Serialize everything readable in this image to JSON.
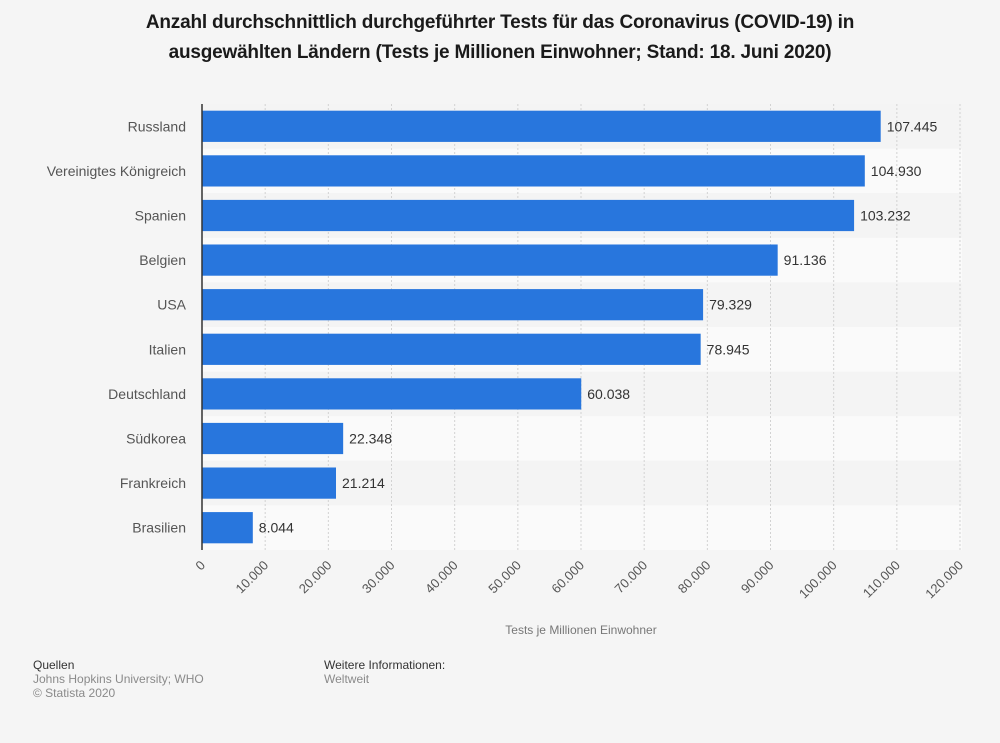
{
  "chart_data": {
    "type": "bar",
    "orientation": "horizontal",
    "title": "Anzahl durchschnittlich durchgeführter Tests für das Coronavirus (COVID-19) in ausgewählten Ländern (Tests je Millionen Einwohner; Stand: 18. Juni 2020)",
    "title_lines": [
      "Anzahl durchschnittlich durchgeführter Tests für das Coronavirus (COVID-19) in",
      "ausgewählten Ländern (Tests je Millionen Einwohner; Stand: 18. Juni 2020)"
    ],
    "categories": [
      "Russland",
      "Vereinigtes Königreich",
      "Spanien",
      "Belgien",
      "USA",
      "Italien",
      "Deutschland",
      "Südkorea",
      "Frankreich",
      "Brasilien"
    ],
    "values": [
      107445,
      104930,
      103232,
      91136,
      79329,
      78945,
      60038,
      22348,
      21214,
      8044
    ],
    "value_labels": [
      "107.445",
      "104.930",
      "103.232",
      "91.136",
      "79.329",
      "78.945",
      "60.038",
      "22.348",
      "21.214",
      "8.044"
    ],
    "xlabel": "Tests je Millionen Einwohner",
    "ylabel": "",
    "xlim": [
      0,
      120000
    ],
    "x_ticks": [
      0,
      10000,
      20000,
      30000,
      40000,
      50000,
      60000,
      70000,
      80000,
      90000,
      100000,
      110000,
      120000
    ],
    "x_tick_labels": [
      "0",
      "10.000",
      "20.000",
      "30.000",
      "40.000",
      "50.000",
      "60.000",
      "70.000",
      "80.000",
      "90.000",
      "100.000",
      "110.000",
      "120.000"
    ],
    "grid": true,
    "legend": "none",
    "colors": {
      "bar": "#2876dd",
      "band_even": "#f4f4f4",
      "band_odd": "#fafafa",
      "background": "#f5f5f5"
    }
  },
  "footer": {
    "sources_heading": "Quellen",
    "sources": "Johns Hopkins University; WHO",
    "copyright": "© Statista 2020",
    "info_heading": "Weitere Informationen:",
    "info": "Weltweit"
  }
}
